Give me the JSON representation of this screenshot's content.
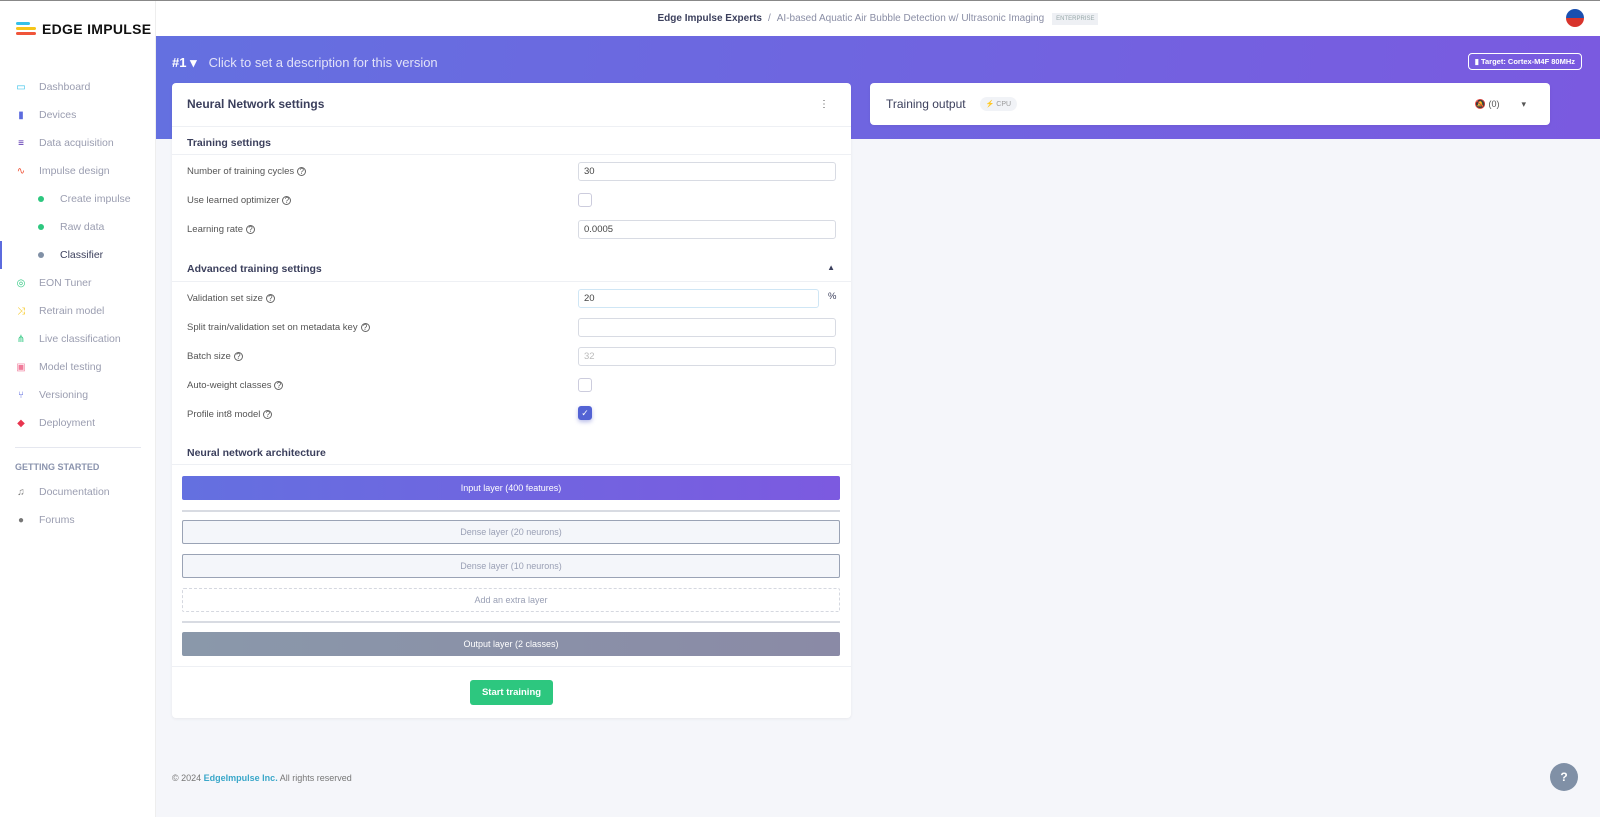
{
  "brand": {
    "name": "EDGE IMPULSE"
  },
  "sidebar": {
    "items": [
      {
        "label": "Dashboard",
        "icon": "monitor-icon",
        "color": "#35c0e8"
      },
      {
        "label": "Devices",
        "icon": "chip-icon",
        "color": "#5c6bde"
      },
      {
        "label": "Data acquisition",
        "icon": "database-icon",
        "color": "#4b1fa8"
      },
      {
        "label": "Impulse design",
        "icon": "pulse-icon",
        "color": "#f0553a"
      },
      {
        "label": "Create impulse",
        "dot": "#2dc77f"
      },
      {
        "label": "Raw data",
        "dot": "#2dc77f"
      },
      {
        "label": "Classifier",
        "dot": "#8090a6"
      },
      {
        "label": "EON Tuner",
        "icon": "compass-icon",
        "color": "#2dc77f"
      },
      {
        "label": "Retrain model",
        "icon": "shuffle-icon",
        "color": "#f5c518"
      },
      {
        "label": "Live classification",
        "icon": "network-icon",
        "color": "#2dc77f"
      },
      {
        "label": "Model testing",
        "icon": "clipboard-icon",
        "color": "#f07b9a"
      },
      {
        "label": "Versioning",
        "icon": "branch-icon",
        "color": "#5c6bde"
      },
      {
        "label": "Deployment",
        "icon": "box-icon",
        "color": "#e8344e"
      }
    ],
    "section": "GETTING STARTED",
    "extra": [
      {
        "label": "Documentation",
        "icon": "book-icon"
      },
      {
        "label": "Forums",
        "icon": "chat-icon"
      }
    ]
  },
  "topbar": {
    "org": "Edge Impulse Experts",
    "sep": "/",
    "project": "AI-based Aquatic Air Bubble Detection w/ Ultrasonic Imaging",
    "badge": "ENTERPRISE"
  },
  "hero": {
    "version": "#1",
    "description": "Click to set a description for this version",
    "target": "Target: Cortex-M4F 80MHz"
  },
  "nn": {
    "title": "Neural Network settings",
    "training_title": "Training settings",
    "cycles_label": "Number of training cycles",
    "cycles": "30",
    "optimizer_label": "Use learned optimizer",
    "optimizer": false,
    "lr_label": "Learning rate",
    "lr": "0.0005",
    "advanced_title": "Advanced training settings",
    "val_label": "Validation set size",
    "val": "20",
    "val_unit": "%",
    "split_label": "Split train/validation set on metadata key",
    "split": "",
    "batch_label": "Batch size",
    "batch_placeholder": "32",
    "autoweight_label": "Auto-weight classes",
    "autoweight": false,
    "int8_label": "Profile int8 model",
    "int8": true,
    "arch_title": "Neural network architecture",
    "layers": {
      "input": "Input layer (400 features)",
      "dense1": "Dense layer (20 neurons)",
      "dense2": "Dense layer (10 neurons)",
      "add": "Add an extra layer",
      "output": "Output layer (2 classes)"
    },
    "start": "Start training"
  },
  "output": {
    "title": "Training output",
    "cpu": "CPU",
    "notif": "(0)"
  },
  "footer": {
    "copy": "© 2024",
    "company": "EdgeImpulse Inc.",
    "rights": "All rights reserved"
  },
  "help": "?"
}
